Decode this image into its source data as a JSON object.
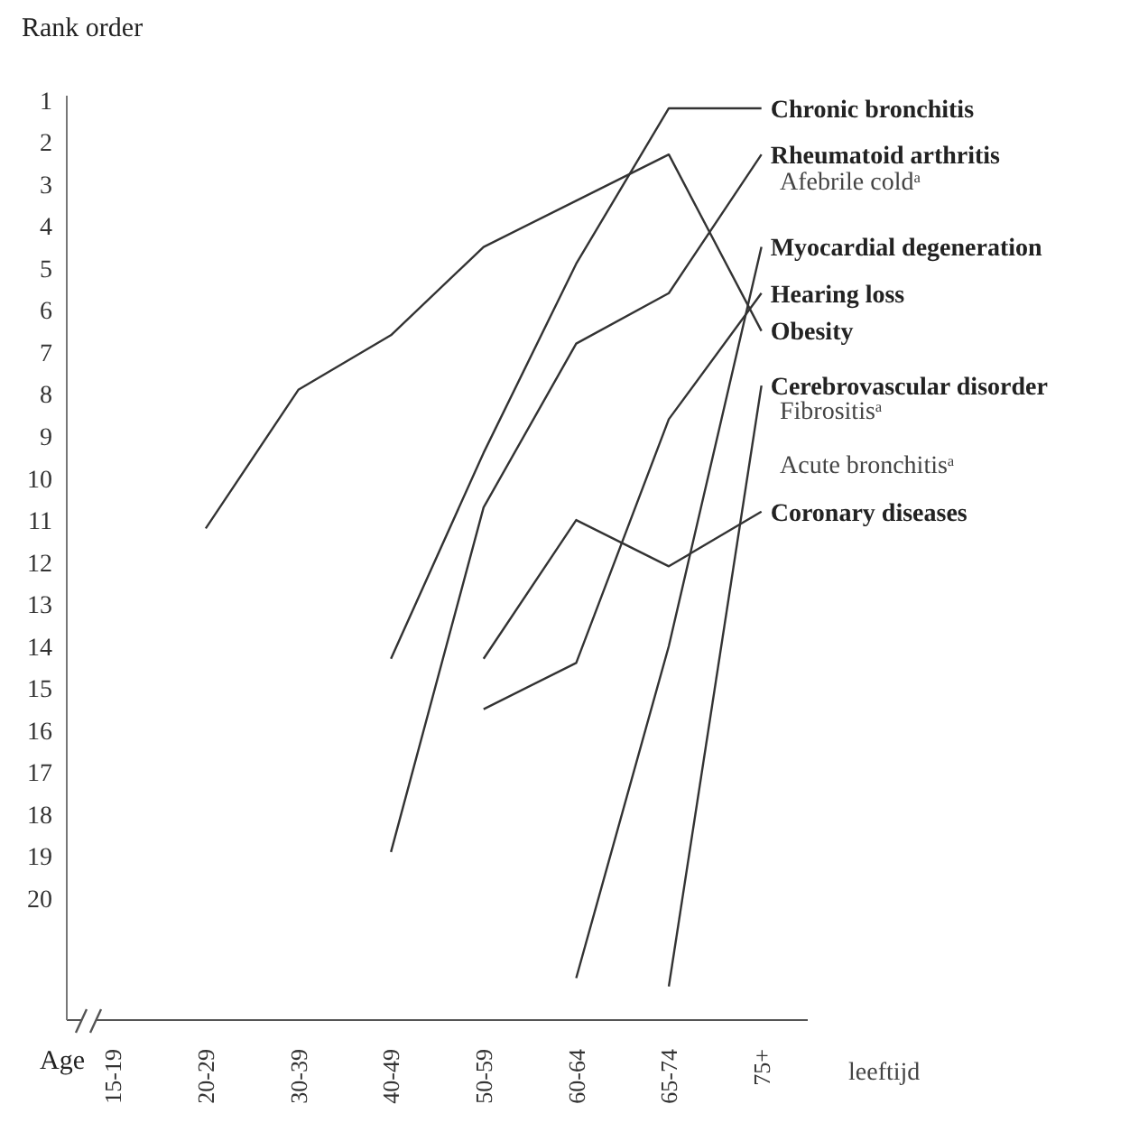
{
  "chart_data": {
    "type": "line",
    "ylabel": "Rank order",
    "xlabel": "Age",
    "categories": [
      "15-19",
      "20-29",
      "30-39",
      "40-49",
      "50-59",
      "60-64",
      "65-74",
      "75+"
    ],
    "ylim": [
      22.9,
      0.9
    ],
    "yticks": [
      1,
      2,
      3,
      4,
      5,
      6,
      7,
      8,
      9,
      10,
      11,
      12,
      13,
      14,
      15,
      16,
      17,
      18,
      19,
      20
    ],
    "series": [
      {
        "name": "Chronic bronchitis",
        "color": "#333333",
        "values": [
          null,
          null,
          null,
          14.3,
          9.4,
          4.9,
          1.2,
          1.2
        ]
      },
      {
        "name": "Rheumatoid arthritis",
        "color": "#333333",
        "values": [
          null,
          null,
          null,
          18.9,
          10.7,
          6.8,
          5.6,
          2.3
        ]
      },
      {
        "name": "Myocardial degeneration",
        "color": "#333333",
        "values": [
          null,
          null,
          null,
          null,
          null,
          21.9,
          14,
          4.5
        ]
      },
      {
        "name": "Hearing loss",
        "color": "#333333",
        "values": [
          null,
          null,
          null,
          null,
          15.5,
          14.4,
          8.6,
          5.6
        ]
      },
      {
        "name": "Obesity",
        "color": "#333333",
        "values": [
          null,
          11.2,
          7.9,
          6.6,
          4.5,
          3.4,
          2.3,
          6.5
        ]
      },
      {
        "name": "Cerebrovascular disorder",
        "color": "#333333",
        "values": [
          null,
          null,
          null,
          null,
          null,
          null,
          22.1,
          7.8
        ]
      },
      {
        "name": "Coronary diseases",
        "color": "#333333",
        "values": [
          null,
          null,
          null,
          null,
          14.3,
          11,
          12.1,
          10.8
        ]
      }
    ],
    "annotations": [
      "Afebrile cold$^{a}$",
      "Fibrositis$^{a}$",
      "Acute bronchitis$^{a}$",
      "leeftijd"
    ],
    "grid": false,
    "legend": false,
    "marker": "none",
    "line_style": "solid"
  }
}
